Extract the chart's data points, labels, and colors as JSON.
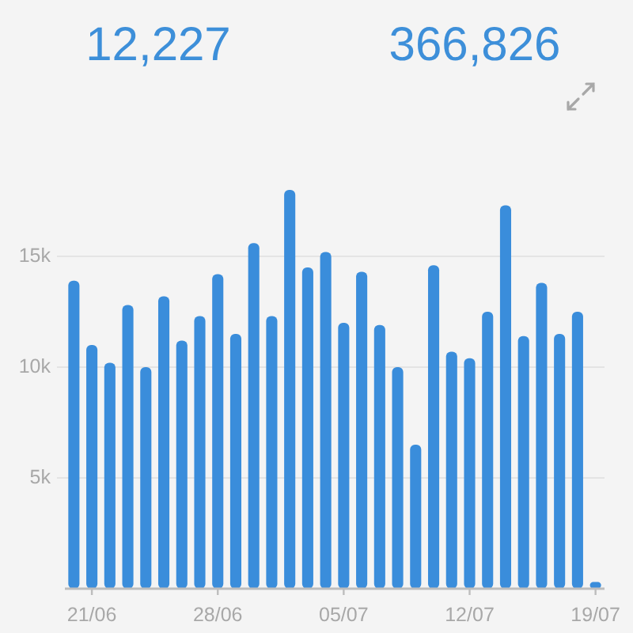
{
  "chart_data": {
    "type": "bar",
    "annotations": [
      "12,227",
      "366,826"
    ],
    "categories": [
      null,
      "21/06",
      null,
      null,
      null,
      null,
      null,
      null,
      "28/06",
      null,
      null,
      null,
      null,
      null,
      null,
      "05/07",
      null,
      null,
      null,
      null,
      null,
      null,
      "12/07",
      null,
      null,
      null,
      null,
      null,
      null,
      "19/07"
    ],
    "values": [
      13900,
      11000,
      10200,
      12800,
      10000,
      13200,
      11200,
      12300,
      14200,
      11500,
      15600,
      12300,
      18000,
      14500,
      15200,
      12000,
      14300,
      11900,
      10000,
      6500,
      14600,
      10700,
      10400,
      12500,
      17300,
      11400,
      13800,
      11500,
      12500,
      300
    ],
    "color": "#3a8ddb",
    "ylim": [
      0,
      18000
    ],
    "yticks": [
      {
        "value": 5000,
        "label": "5k"
      },
      {
        "value": 10000,
        "label": "10k"
      },
      {
        "value": 15000,
        "label": "15k"
      }
    ],
    "grid": "y"
  }
}
